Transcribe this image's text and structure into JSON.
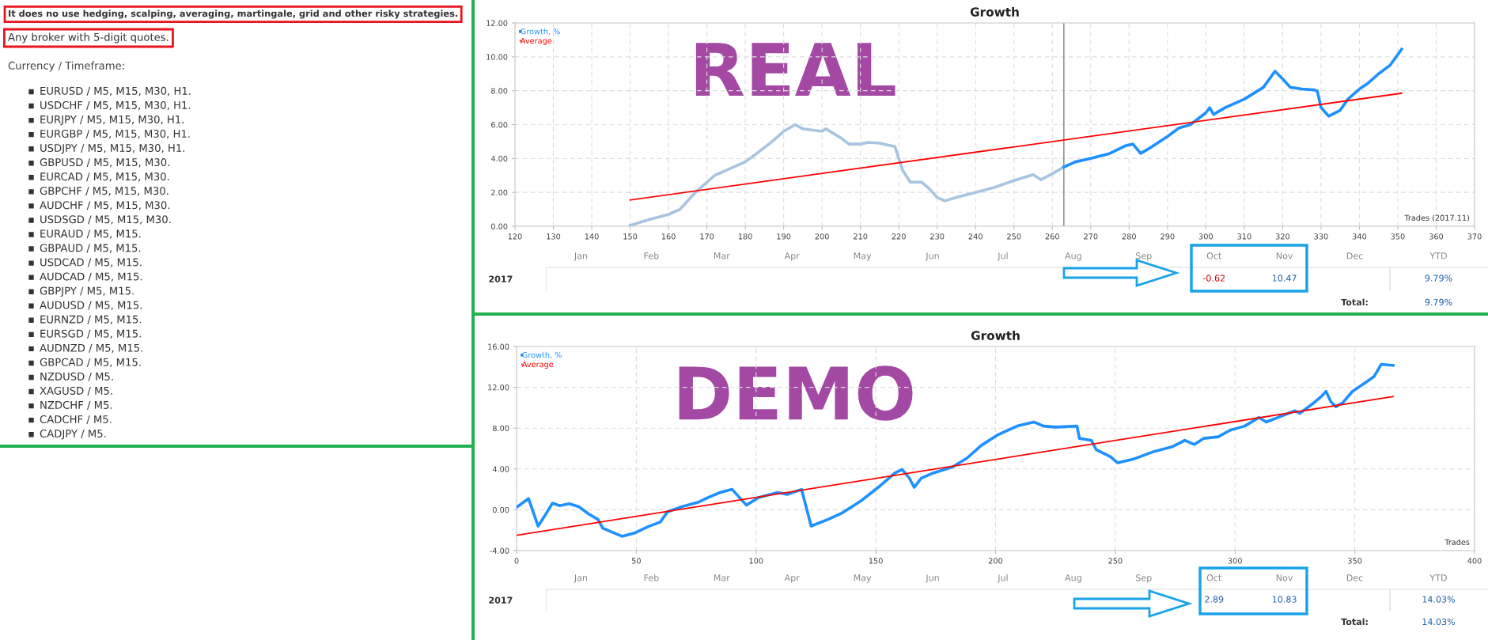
{
  "chart_data": [
    {
      "type": "other",
      "annotations": [
        "It does no use hedging, scalping, averaging, martingale, grid and other risky strategies.",
        "Any broker with 5-digit quotes.",
        "Currency / Timeframe:",
        "EURUSD / M5, M15, M30, H1.",
        "USDCHF / M5, M15, M30, H1.",
        "EURJPY / M5, M15, M30, H1.",
        "EURGBP / M5, M15, M30, H1.",
        "USDJPY / M5, M15, M30, H1.",
        "GBPUSD / M5, M15, M30.",
        "EURCAD / M5, M15, M30.",
        "GBPCHF / M5, M15, M30.",
        "AUDCHF / M5, M15, M30.",
        "USDSGD / M5, M15, M30.",
        "EURAUD / M5, M15.",
        "GBPAUD / M5, M15.",
        "USDCAD / M5, M15.",
        "AUDCAD / M5, M15.",
        "GBPJPY / M5, M15.",
        "AUDUSD / M5, M15.",
        "EURNZD / M5, M15.",
        "EURSGD / M5, M15.",
        "AUDNZD / M5, M15.",
        "GBPCAD / M5, M15.",
        "NZDUSD / M5.",
        "XAGUSD / M5.",
        "NZDCHF / M5.",
        "CADCHF / M5.",
        "CADJPY / M5."
      ]
    },
    {
      "type": "line",
      "title": "Growth",
      "annotations": [
        "REAL",
        "Trades (2017.11)"
      ],
      "xlim": [
        120,
        370
      ],
      "xticks": [
        120,
        130,
        140,
        150,
        160,
        170,
        180,
        190,
        200,
        210,
        220,
        230,
        240,
        250,
        260,
        270,
        280,
        290,
        300,
        310,
        320,
        330,
        340,
        350,
        360,
        370
      ],
      "ylim": [
        0,
        12
      ],
      "yticks": [
        {
          "value": 0,
          "label": "0.00"
        },
        {
          "value": 2,
          "label": "2.00"
        },
        {
          "value": 4,
          "label": "4.00"
        },
        {
          "value": 6,
          "label": "6.00"
        },
        {
          "value": 8,
          "label": "8.00"
        },
        {
          "value": 10,
          "label": "10.00"
        },
        {
          "value": 12,
          "label": "12.00"
        }
      ],
      "grid": true,
      "legend": "top left",
      "marker": "none",
      "line_style": "solid",
      "ref_lines": [
        {
          "axis": "x",
          "value": 263,
          "color": "#808080"
        }
      ],
      "series": [
        {
          "color": "#a8c4e0",
          "x": [
            150,
            155,
            160,
            163,
            167,
            170,
            172,
            175,
            178,
            180,
            183,
            187,
            190,
            193,
            195,
            200,
            201,
            205,
            207,
            210,
            212,
            215,
            218,
            219,
            221,
            223,
            226,
            228,
            230,
            232,
            235,
            240,
            245,
            250,
            255,
            257,
            260,
            263
          ],
          "values": [
            0.05,
            0.4,
            0.7,
            1.0,
            2.0,
            2.6,
            3.0,
            3.3,
            3.6,
            3.8,
            4.3,
            5.0,
            5.6,
            6.0,
            5.75,
            5.6,
            5.75,
            5.2,
            4.85,
            4.85,
            4.95,
            4.9,
            4.75,
            4.7,
            3.3,
            2.6,
            2.6,
            2.2,
            1.7,
            1.5,
            1.7,
            2.0,
            2.3,
            2.7,
            3.05,
            2.75,
            3.1,
            3.5
          ]
        },
        {
          "name": "Growth, %",
          "color": "#1e90ff",
          "x": [
            263,
            266,
            270,
            275,
            279,
            281,
            283,
            286,
            290,
            293,
            296,
            300,
            301,
            302,
            305,
            308,
            310,
            315,
            318,
            320,
            322,
            325,
            328,
            329,
            330,
            332,
            335,
            337,
            340,
            342,
            345,
            348,
            351
          ],
          "values": [
            3.5,
            3.8,
            4.0,
            4.3,
            4.75,
            4.85,
            4.3,
            4.7,
            5.3,
            5.8,
            6.0,
            6.7,
            7.0,
            6.6,
            7.0,
            7.3,
            7.5,
            8.2,
            9.15,
            8.7,
            8.2,
            8.1,
            8.05,
            8.0,
            7.0,
            6.5,
            6.85,
            7.5,
            8.1,
            8.4,
            9.0,
            9.5,
            10.45
          ]
        },
        {
          "name": "Average",
          "color": "#ff0000",
          "x": [
            150,
            351
          ],
          "values": [
            1.55,
            7.85
          ]
        }
      ]
    },
    {
      "type": "heatmap",
      "categories": [
        "Jan",
        "Feb",
        "Mar",
        "Apr",
        "May",
        "Jun",
        "Jul",
        "Aug",
        "Sep",
        "Oct",
        "Nov",
        "Dec",
        "YTD"
      ],
      "y_categories": [
        "2017"
      ],
      "annotations": [
        "Total:",
        "9.79%"
      ],
      "cells": [
        [
          null,
          null,
          null,
          null,
          null,
          null,
          null,
          null,
          null,
          -0.62,
          10.47,
          null,
          9.79
        ]
      ],
      "cell_labels": [
        [
          null,
          null,
          null,
          null,
          null,
          null,
          null,
          null,
          null,
          "-0.62",
          "10.47",
          null,
          "9.79%"
        ]
      ]
    },
    {
      "type": "line",
      "title": "Growth",
      "annotations": [
        "DEMO",
        "Trades"
      ],
      "xlim": [
        0,
        400
      ],
      "xticks": [
        0,
        50,
        100,
        150,
        200,
        250,
        300,
        350,
        400
      ],
      "ylim": [
        -4,
        16
      ],
      "yticks": [
        {
          "value": -4,
          "label": "-4.00"
        },
        {
          "value": 0,
          "label": "0.00"
        },
        {
          "value": 4,
          "label": "4.00"
        },
        {
          "value": 8,
          "label": "8.00"
        },
        {
          "value": 12,
          "label": "12.00"
        },
        {
          "value": 16,
          "label": "16.00"
        }
      ],
      "grid": true,
      "legend": "top left",
      "marker": "none",
      "line_style": "solid",
      "series": [
        {
          "name": "Growth, %",
          "color": "#1e90ff",
          "x": [
            0,
            5,
            9,
            12,
            15,
            18,
            22,
            26,
            30,
            34,
            36,
            41,
            44,
            49,
            55,
            60,
            63,
            69,
            76,
            80,
            85,
            90,
            96,
            101,
            109,
            113,
            119,
            123,
            130,
            136,
            144,
            151,
            158,
            161,
            164,
            166,
            169,
            174,
            182,
            188,
            194,
            201,
            209,
            216,
            220,
            225,
            234,
            235,
            240,
            242,
            248,
            251,
            258,
            266,
            274,
            279,
            283,
            287,
            293,
            298,
            304,
            310,
            313,
            318,
            325,
            327,
            333,
            336,
            338,
            340,
            342,
            345,
            349,
            355,
            358,
            361,
            366
          ],
          "values": [
            0.25,
            1.1,
            -1.6,
            -0.5,
            0.65,
            0.4,
            0.6,
            0.3,
            -0.4,
            -0.95,
            -1.8,
            -2.3,
            -2.6,
            -2.3,
            -1.65,
            -1.2,
            -0.2,
            0.3,
            0.75,
            1.2,
            1.7,
            2.0,
            0.45,
            1.2,
            1.7,
            1.5,
            2.0,
            -1.6,
            -0.95,
            -0.3,
            0.9,
            2.2,
            3.6,
            3.95,
            3.1,
            2.2,
            3.1,
            3.6,
            4.2,
            5.05,
            6.3,
            7.35,
            8.2,
            8.6,
            8.2,
            8.1,
            8.2,
            7.0,
            6.8,
            5.9,
            5.2,
            4.6,
            5.0,
            5.7,
            6.2,
            6.8,
            6.4,
            7.0,
            7.15,
            7.8,
            8.2,
            9.05,
            8.6,
            9.05,
            9.7,
            9.45,
            10.5,
            11.1,
            11.6,
            10.6,
            10.1,
            10.5,
            11.6,
            12.55,
            13.05,
            14.25,
            14.15
          ]
        },
        {
          "name": "Average",
          "color": "#ff0000",
          "x": [
            0,
            366
          ],
          "values": [
            -2.5,
            11.1
          ]
        }
      ]
    },
    {
      "type": "heatmap",
      "categories": [
        "Jan",
        "Feb",
        "Mar",
        "Apr",
        "May",
        "Jun",
        "Jul",
        "Aug",
        "Sep",
        "Oct",
        "Nov",
        "Dec",
        "YTD"
      ],
      "y_categories": [
        "2017"
      ],
      "annotations": [
        "Total:",
        "14.03%"
      ],
      "cells": [
        [
          null,
          null,
          null,
          null,
          null,
          null,
          null,
          null,
          null,
          2.89,
          10.83,
          null,
          14.03
        ]
      ],
      "cell_labels": [
        [
          null,
          null,
          null,
          null,
          null,
          null,
          null,
          null,
          null,
          "2.89",
          "10.83",
          null,
          "14.03%"
        ]
      ]
    }
  ]
}
